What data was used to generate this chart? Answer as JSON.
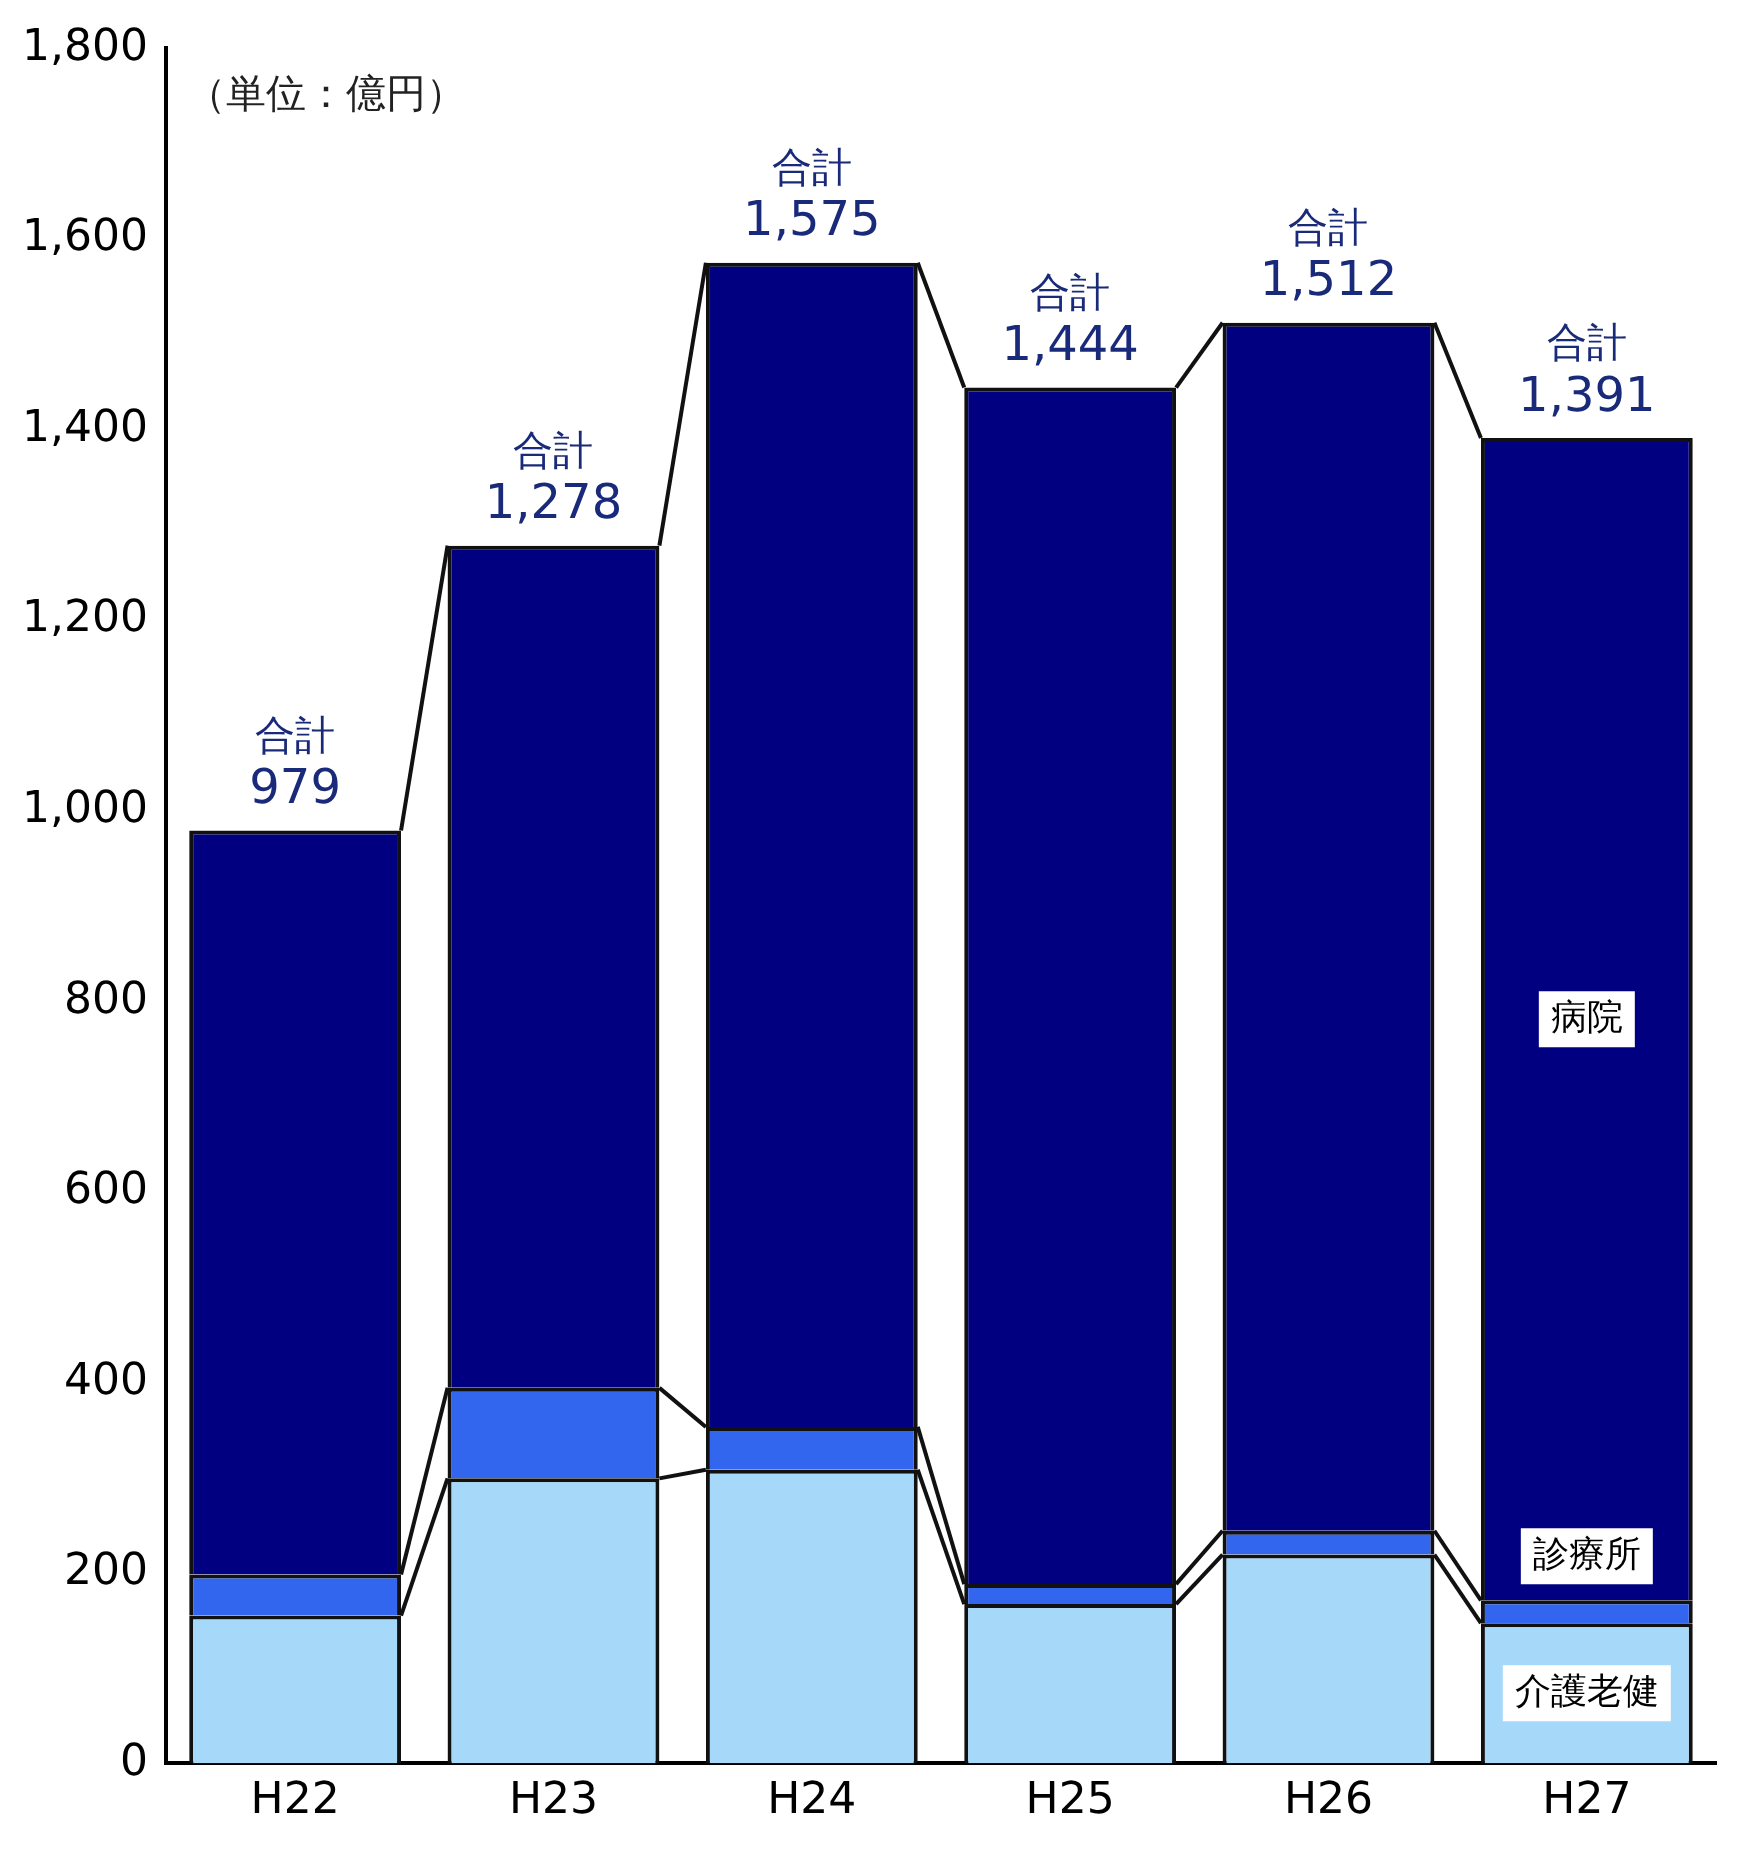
{
  "chart_data": {
    "type": "bar",
    "stacked": true,
    "categories": [
      "H22",
      "H23",
      "H24",
      "H25",
      "H26",
      "H27"
    ],
    "series": [
      {
        "name": "介護老健",
        "color": "#a6d8fa",
        "values": [
          155,
          299,
          308,
          167,
          219,
          147
        ]
      },
      {
        "name": "診療所",
        "color": "#3366ee",
        "values": [
          43,
          95,
          45,
          21,
          25,
          24
        ]
      },
      {
        "name": "病院",
        "color": "#000080",
        "values": [
          781,
          884,
          1222,
          1256,
          1268,
          1220
        ]
      }
    ],
    "totals": [
      "合計\n979",
      "合計\n1,278",
      "合計\n1,575",
      "合計\n1,444",
      "合計\n1,512",
      "合計\n1,391"
    ],
    "ylim": [
      0,
      1800
    ],
    "yticks": [
      0,
      200,
      400,
      600,
      800,
      {
        "value": 1000,
        "label": "1,000"
      },
      {
        "value": 1200,
        "label": "1,200"
      },
      {
        "value": 1400,
        "label": "1,400"
      },
      {
        "value": 1600,
        "label": "1,600"
      },
      {
        "value": 1800,
        "label": "1,800"
      }
    ],
    "annotations": [
      "（単位：億円）"
    ],
    "grid": false,
    "legend": false
  }
}
